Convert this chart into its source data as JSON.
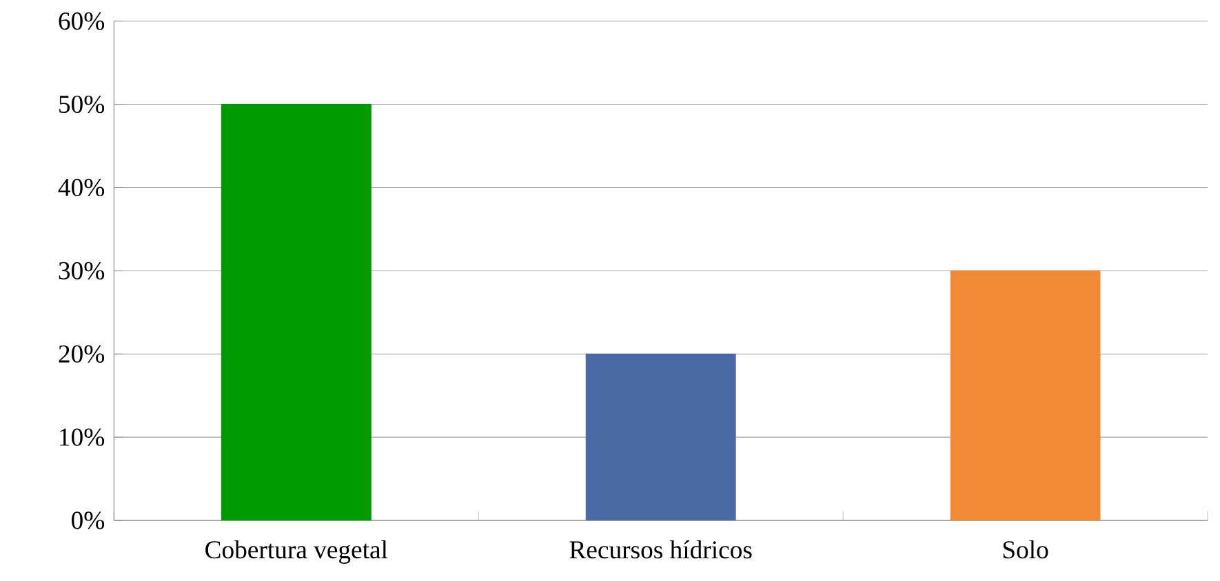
{
  "chart_data": {
    "type": "bar",
    "categories": [
      "Cobertura vegetal",
      "Recursos hídricos",
      "Solo"
    ],
    "values": [
      50,
      20,
      30
    ],
    "colors": [
      "#009a00",
      "#4a6aa5",
      "#f08a35"
    ],
    "ylim": [
      0,
      60
    ],
    "yticks": [
      {
        "value": 0,
        "label": "0%"
      },
      {
        "value": 10,
        "label": "10%"
      },
      {
        "value": 20,
        "label": "20%"
      },
      {
        "value": 30,
        "label": "30%"
      },
      {
        "value": 40,
        "label": "40%"
      },
      {
        "value": 50,
        "label": "50%"
      },
      {
        "value": 60,
        "label": "60%"
      }
    ],
    "grid": "y"
  }
}
